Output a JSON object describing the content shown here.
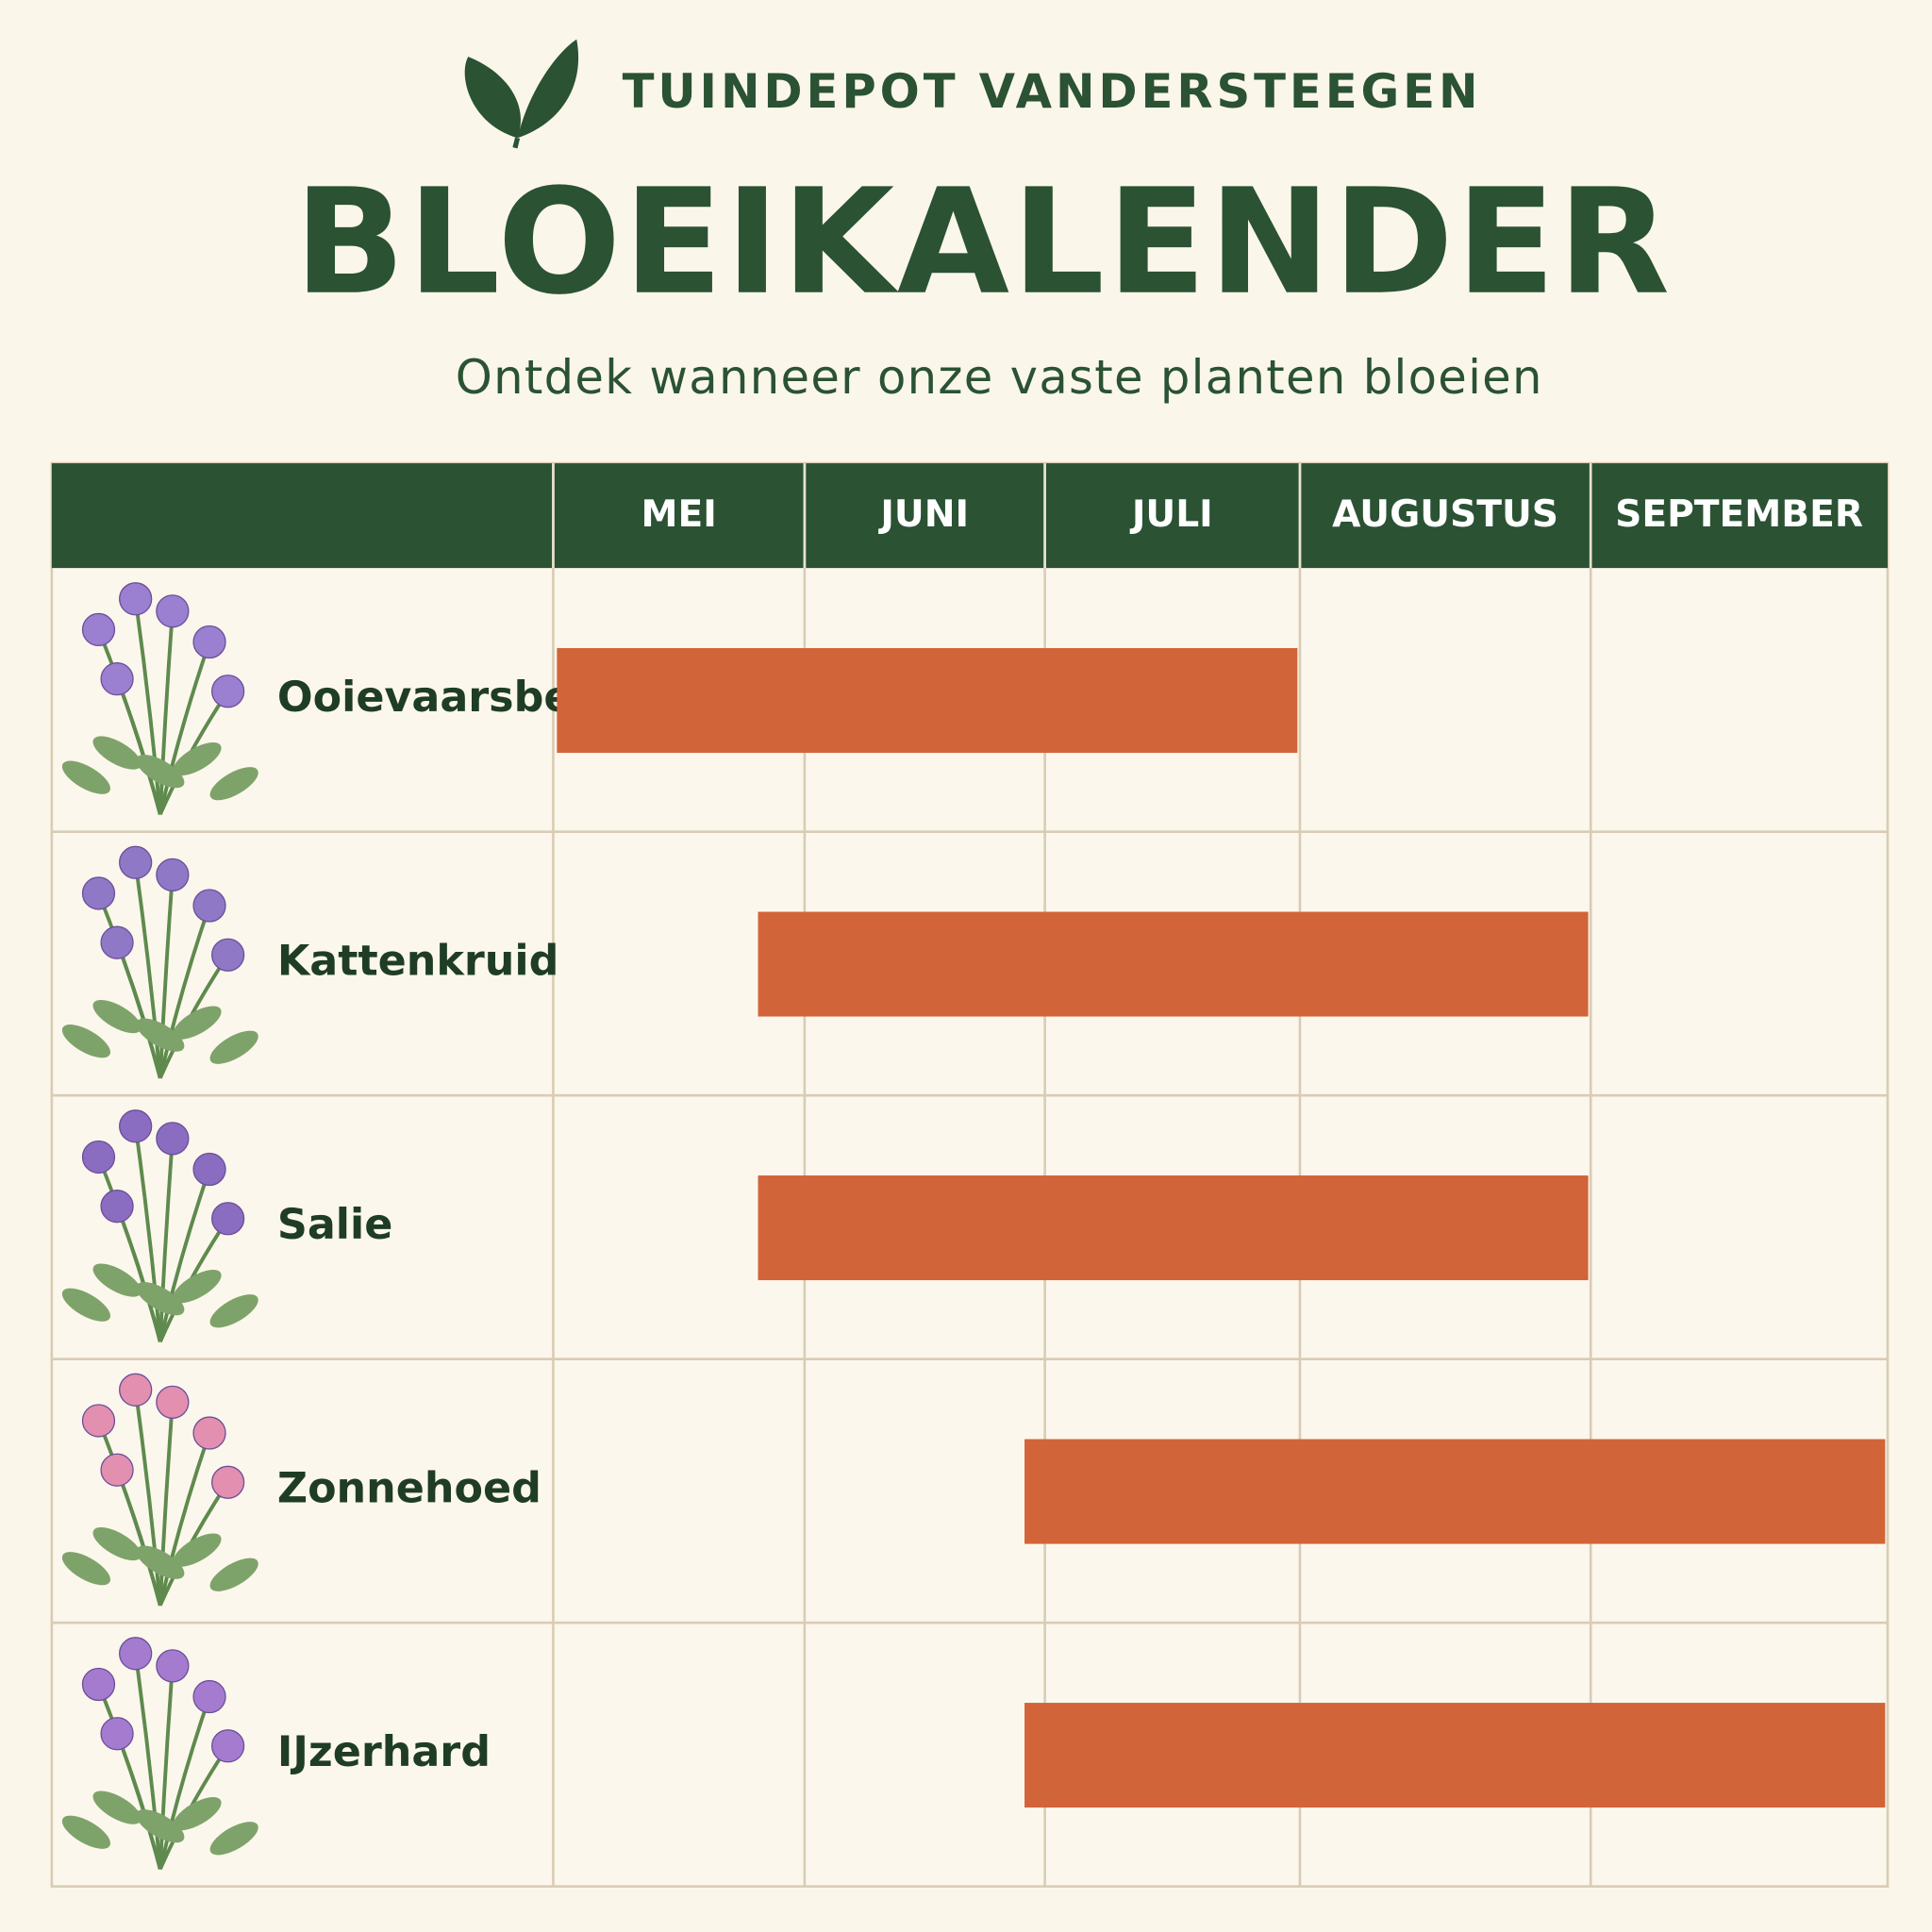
{
  "header": {
    "brand": "TUINDEPOT VANDERSTEEGEN",
    "title": "BLOEIKALENDER",
    "subtitle": "Ontdek wanneer onze vaste planten bloeien"
  },
  "chart_data": {
    "type": "gantt",
    "categories": [
      "MEI",
      "JUNI",
      "JULI",
      "AUGUSTUS",
      "SEPTEMBER"
    ],
    "xlim": [
      0,
      5
    ],
    "color": "#d2643a",
    "tasks": [
      {
        "name": "Ooievaarsbek",
        "start": 0,
        "end": 3
      },
      {
        "name": "Kattenkruid",
        "start": 0.8,
        "end": 4
      },
      {
        "name": "Salie",
        "start": 0.8,
        "end": 4
      },
      {
        "name": "Zonnehoed",
        "start": 1.9,
        "end": 5
      },
      {
        "name": "IJzerhard",
        "start": 1.9,
        "end": 5
      }
    ]
  }
}
